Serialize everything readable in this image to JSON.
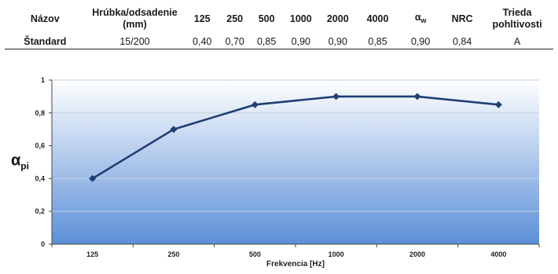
{
  "table": {
    "headers": {
      "name": "Názov",
      "depth_line1": "Hrúbka/odsadenie",
      "depth_line2": "(mm)",
      "f125": "125",
      "f250": "250",
      "f500": "500",
      "f1000": "1000",
      "f2000": "2000",
      "f4000": "4000",
      "aw_main": "α",
      "aw_sub": "w",
      "nrc": "NRC",
      "class_line1": "Trieda",
      "class_line2": "pohltivosti"
    },
    "row": {
      "name": "Štandard",
      "depth": "15/200",
      "f125": "0,40",
      "f250": "0,70",
      "f500": "0,85",
      "f1000": "0,90",
      "f2000": "0,90",
      "f4000": "0,85",
      "aw": "0,90",
      "nrc": "0,84",
      "class": "A"
    }
  },
  "chart_data": {
    "type": "line",
    "categories": [
      "125",
      "250",
      "500",
      "1000",
      "2000",
      "4000"
    ],
    "series": [
      {
        "values": [
          0.4,
          0.7,
          0.85,
          0.9,
          0.9,
          0.85
        ],
        "color": "#1f3e73"
      }
    ],
    "xlabel": "Frekvencia [Hz]",
    "ylabel_main": "α",
    "ylabel_sub": "pi",
    "ylim": [
      0,
      1
    ],
    "yticks": [
      0,
      0.2,
      0.4,
      0.6,
      0.8,
      1
    ],
    "ytick_labels": [
      "0",
      "0,2",
      "0,4",
      "0,6",
      "0,8",
      "1"
    ],
    "grid": true,
    "background_gradient": [
      "#ffffff",
      "#5b8fd8"
    ]
  }
}
